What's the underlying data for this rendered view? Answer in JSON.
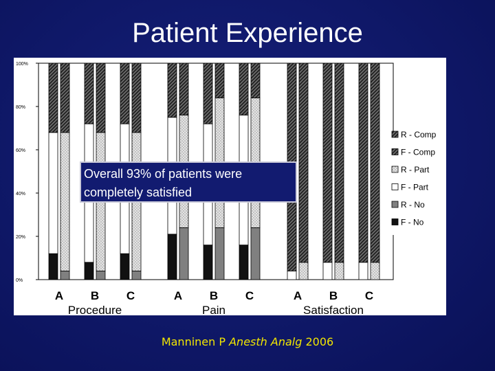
{
  "slide": {
    "title": "Patient Experience",
    "callout_line1": "Overall 93% of patients were",
    "callout_line2": "completely satisfied",
    "citation_author": "Manninen P",
    "citation_journal": "Anesth Analg",
    "citation_year": "2006"
  },
  "chart_data": {
    "type": "bar",
    "stacked": true,
    "ylim": [
      0,
      100
    ],
    "y_ticks": [
      "0%",
      "20%",
      "40%",
      "60%",
      "80%",
      "100%"
    ],
    "groups": [
      {
        "name": "Procedure",
        "categories": [
          "A",
          "B",
          "C"
        ]
      },
      {
        "name": "Pain",
        "categories": [
          "A",
          "B",
          "C"
        ]
      },
      {
        "name": "Satisfaction",
        "categories": [
          "A",
          "B",
          "C"
        ]
      }
    ],
    "legend": [
      "R - Comp",
      "F - Comp",
      "R - Part",
      "F - Part",
      "R - No",
      "F - No"
    ],
    "legend_position": "right",
    "colors": {
      "comp": "hatch-dark",
      "part_F": "#ffffff",
      "part_R": "dotted-light",
      "no_F": "#111111",
      "no_R": "#808080"
    },
    "bars": [
      {
        "group": "Procedure",
        "category": "A",
        "series": "F",
        "no": 12,
        "part": 56,
        "comp": 32
      },
      {
        "group": "Procedure",
        "category": "A",
        "series": "R",
        "no": 4,
        "part": 64,
        "comp": 32
      },
      {
        "group": "Procedure",
        "category": "B",
        "series": "F",
        "no": 8,
        "part": 64,
        "comp": 28
      },
      {
        "group": "Procedure",
        "category": "B",
        "series": "R",
        "no": 4,
        "part": 64,
        "comp": 32
      },
      {
        "group": "Procedure",
        "category": "C",
        "series": "F",
        "no": 12,
        "part": 60,
        "comp": 28
      },
      {
        "group": "Procedure",
        "category": "C",
        "series": "R",
        "no": 4,
        "part": 64,
        "comp": 32
      },
      {
        "group": "Pain",
        "category": "A",
        "series": "F",
        "no": 21,
        "part": 54,
        "comp": 25
      },
      {
        "group": "Pain",
        "category": "A",
        "series": "R",
        "no": 24,
        "part": 52,
        "comp": 24
      },
      {
        "group": "Pain",
        "category": "B",
        "series": "F",
        "no": 16,
        "part": 56,
        "comp": 28
      },
      {
        "group": "Pain",
        "category": "B",
        "series": "R",
        "no": 24,
        "part": 60,
        "comp": 16
      },
      {
        "group": "Pain",
        "category": "C",
        "series": "F",
        "no": 16,
        "part": 60,
        "comp": 24
      },
      {
        "group": "Pain",
        "category": "C",
        "series": "R",
        "no": 24,
        "part": 60,
        "comp": 16
      },
      {
        "group": "Satisfaction",
        "category": "A",
        "series": "F",
        "no": 0,
        "part": 4,
        "comp": 96
      },
      {
        "group": "Satisfaction",
        "category": "A",
        "series": "R",
        "no": 0,
        "part": 8,
        "comp": 92
      },
      {
        "group": "Satisfaction",
        "category": "B",
        "series": "F",
        "no": 0,
        "part": 8,
        "comp": 92
      },
      {
        "group": "Satisfaction",
        "category": "B",
        "series": "R",
        "no": 0,
        "part": 8,
        "comp": 92
      },
      {
        "group": "Satisfaction",
        "category": "C",
        "series": "F",
        "no": 0,
        "part": 8,
        "comp": 92
      },
      {
        "group": "Satisfaction",
        "category": "C",
        "series": "R",
        "no": 0,
        "part": 8,
        "comp": 92
      }
    ]
  }
}
